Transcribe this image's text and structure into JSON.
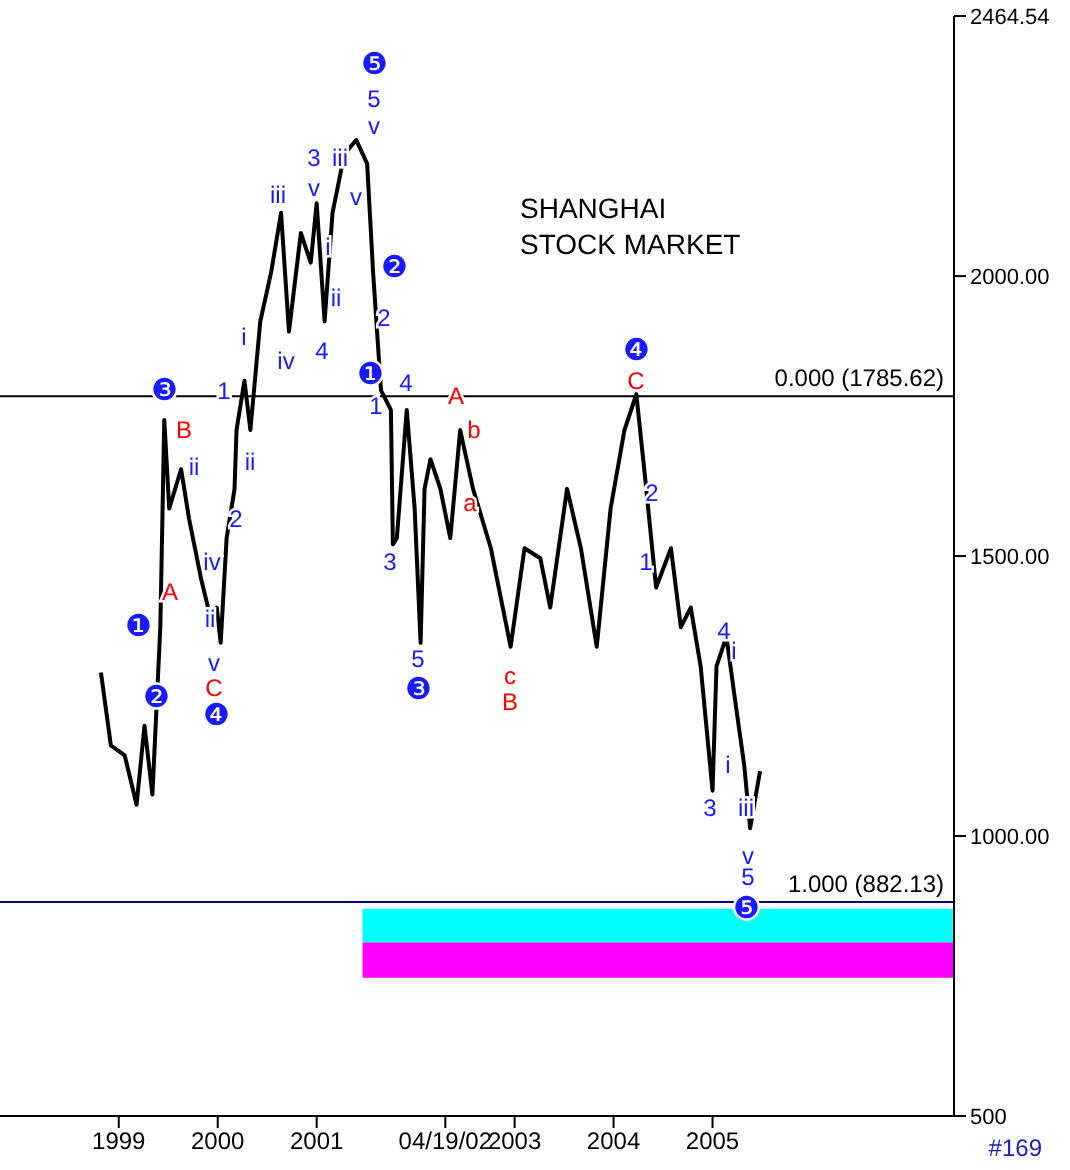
{
  "chart_data": {
    "type": "line",
    "title": "SHANGHAI\nSTOCK MARKET",
    "x": [
      1998.82,
      1998.92,
      1999.06,
      1999.18,
      1999.26,
      1999.34,
      1999.42,
      1999.46,
      1999.51,
      1999.63,
      1999.71,
      1999.83,
      1999.95,
      1999.99,
      2000.03,
      2000.09,
      2000.17,
      2000.19,
      2000.27,
      2000.33,
      2000.43,
      2000.54,
      2000.64,
      2000.72,
      2000.84,
      2000.94,
      2001.0,
      2001.08,
      2001.16,
      2001.28,
      2001.4,
      2001.51,
      2001.57,
      2001.65,
      2001.75,
      2001.77,
      2001.81,
      2001.91,
      2001.99,
      2002.05,
      2002.09,
      2002.15,
      2002.25,
      2002.35,
      2002.45,
      2002.58,
      2002.76,
      2002.96,
      2003.1,
      2003.26,
      2003.36,
      2003.53,
      2003.67,
      2003.83,
      2003.97,
      2004.11,
      2004.23,
      2004.31,
      2004.43,
      2004.58,
      2004.68,
      2004.78,
      2004.88,
      2005.0,
      2005.04,
      2005.14,
      2005.25,
      2005.32,
      2005.38,
      2005.48
    ],
    "series": [
      {
        "color": "#000000",
        "values": [
          1292,
          1162,
          1144,
          1056,
          1197,
          1074,
          1373,
          1743,
          1585,
          1655,
          1567,
          1461,
          1373,
          1408,
          1345,
          1532,
          1620,
          1725,
          1813,
          1725,
          1919,
          2007,
          2113,
          1901,
          2077,
          2024,
          2130,
          1919,
          2113,
          2218,
          2243,
          2201,
          2007,
          1796,
          1761,
          1521,
          1532,
          1761,
          1585,
          1345,
          1620,
          1673,
          1620,
          1532,
          1725,
          1620,
          1514,
          1338,
          1514,
          1496,
          1408,
          1620,
          1514,
          1338,
          1585,
          1725,
          1789,
          1655,
          1444,
          1514,
          1373,
          1408,
          1303,
          1081,
          1303,
          1356,
          1215,
          1127,
          1014,
          1116
        ]
      }
    ],
    "xlim": [
      1997.8,
      2007.44
    ],
    "xticks": [
      1999,
      2000,
      2001,
      {
        "value": 2002.3,
        "label": "04/19/02"
      },
      2003,
      2004,
      2005
    ],
    "ylim": [
      500,
      2464.54
    ],
    "yticks": [
      {
        "value": 500,
        "label": "500"
      },
      {
        "value": 1000,
        "label": "1000.00"
      },
      {
        "value": 1500,
        "label": "1500.00"
      },
      {
        "value": 2000,
        "label": "2000.00"
      },
      2464.54
    ],
    "ref_lines": [
      {
        "axis": "y",
        "value": 1785.62,
        "label": "0.000 (1785.62)",
        "color": "#000000"
      },
      {
        "axis": "y",
        "value": 882.13,
        "label": "1.000 (882.13)",
        "color": "#000080"
      }
    ],
    "bands": [
      {
        "axis": "y",
        "from": 810,
        "to": 870,
        "color": "#00ffff"
      },
      {
        "axis": "y",
        "from": 747,
        "to": 810,
        "color": "#ff00ff"
      }
    ],
    "annotations": [
      "#169",
      "❺",
      "5",
      "v",
      "3",
      "iii",
      "v",
      "v",
      "iii",
      "i",
      "ii",
      "iv",
      "4",
      "i",
      "1",
      "ii",
      "2",
      "ii",
      "iv",
      "ii",
      "v",
      "B",
      "A",
      "C",
      "❸",
      "❶",
      "❷",
      "❹",
      "❷",
      "❶",
      "4",
      "1",
      "2",
      "3",
      "5",
      "❸",
      "A",
      "b",
      "a",
      "c",
      "B",
      "❹",
      "C",
      "2",
      "1",
      "3",
      "4",
      "i",
      "i",
      "iii",
      "v",
      "5",
      "❺"
    ]
  }
}
